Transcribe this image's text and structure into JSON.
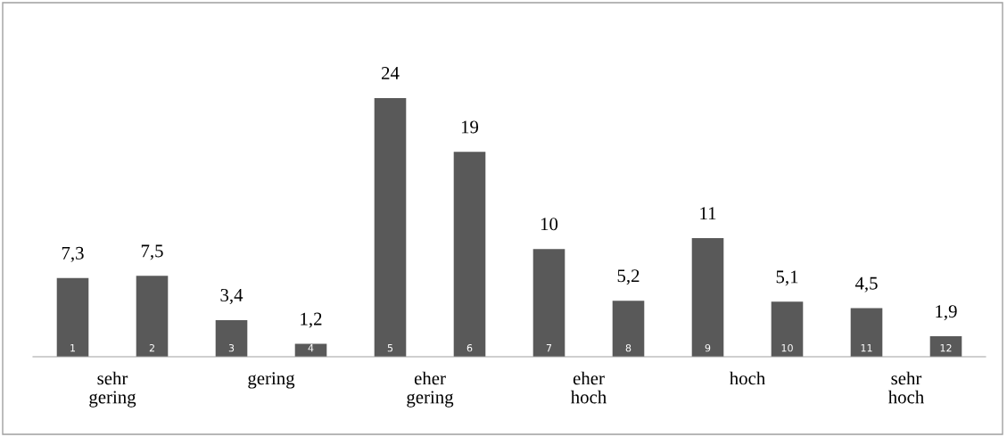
{
  "chart_data": {
    "type": "bar",
    "categories": [
      "1",
      "2",
      "3",
      "4",
      "5",
      "6",
      "7",
      "8",
      "9",
      "10",
      "11",
      "12"
    ],
    "values": [
      7.3,
      7.5,
      3.4,
      1.2,
      24,
      19,
      10,
      5.2,
      11,
      5.1,
      4.5,
      1.9
    ],
    "value_labels": [
      "7,3",
      "7,5",
      "3,4",
      "1,2",
      "24",
      "19",
      "10",
      "5,2",
      "11",
      "5,1",
      "4,5",
      "1,9"
    ],
    "color": "#595959",
    "annotations": [
      "sehr\ngering",
      "gering",
      "eher\ngering",
      "eher\nhoch",
      "hoch",
      "sehr\nhoch"
    ],
    "legend": false
  }
}
